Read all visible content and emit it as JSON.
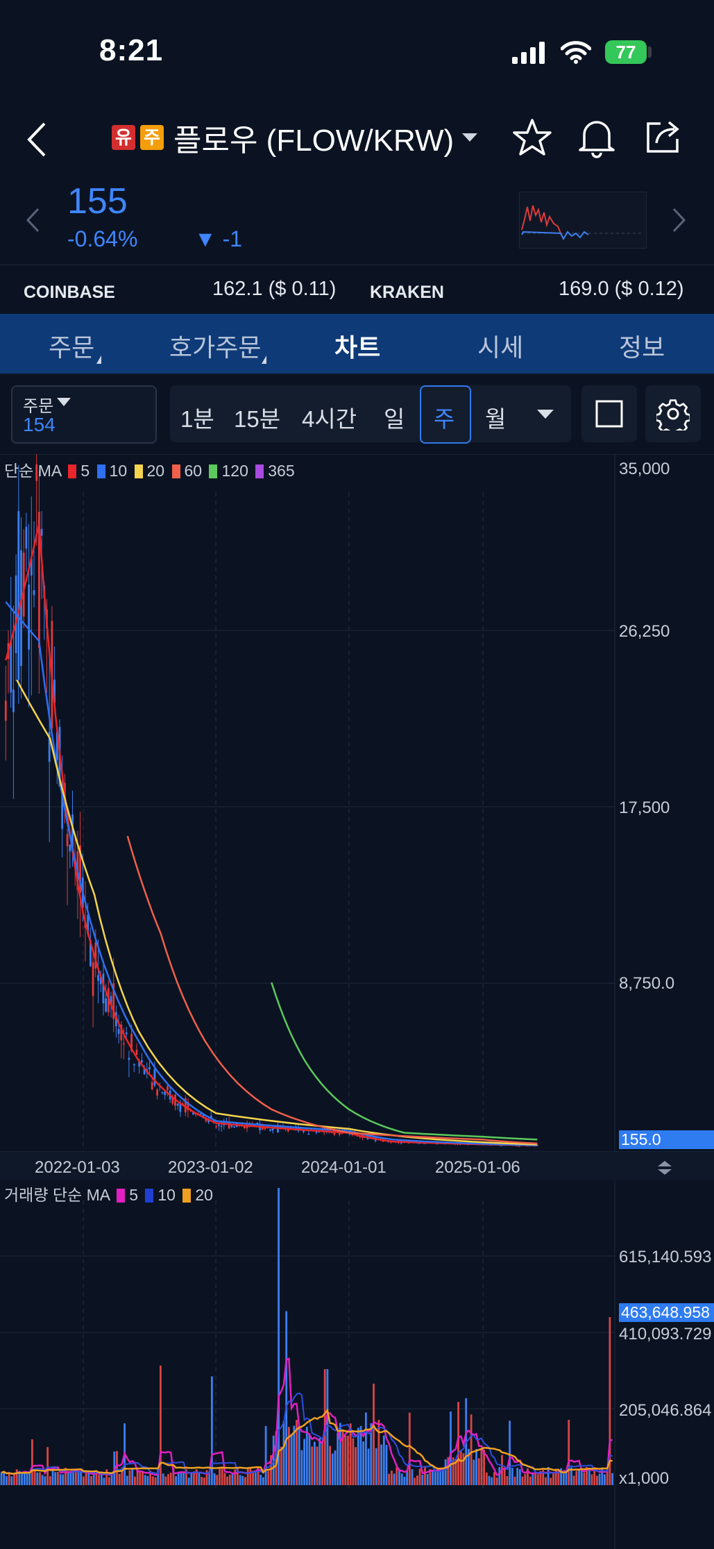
{
  "status": {
    "time": "8:21",
    "battery": "77"
  },
  "header": {
    "badges": [
      {
        "label": "유",
        "color": "#d32f2f"
      },
      {
        "label": "주",
        "color": "#f59e0b"
      }
    ],
    "title": "플로우 (FLOW/KRW)"
  },
  "price": {
    "value": "155",
    "change_pct": "-0.64%",
    "change": "▼ -1"
  },
  "exchanges": [
    {
      "name": "COINBASE",
      "value": "162.1 ($ 0.11)"
    },
    {
      "name": "KRAKEN",
      "value": "169.0 ($ 0.12)"
    }
  ],
  "tabs": [
    {
      "label": "주문",
      "dropdown": true,
      "active": false
    },
    {
      "label": "호가주문",
      "dropdown": true,
      "active": false
    },
    {
      "label": "차트",
      "dropdown": false,
      "active": true
    },
    {
      "label": "시세",
      "dropdown": false,
      "active": false
    },
    {
      "label": "정보",
      "dropdown": false,
      "active": false
    }
  ],
  "order": {
    "label": "주문",
    "value": "154"
  },
  "periods": [
    "1분",
    "15분",
    "4시간",
    "일",
    "주",
    "월"
  ],
  "selected_period": "주",
  "price_chart": {
    "legend_prefix": "단순 MA",
    "ma": [
      {
        "n": "5",
        "color": "#e8262b"
      },
      {
        "n": "10",
        "color": "#2f6ff0"
      },
      {
        "n": "20",
        "color": "#f5d54d"
      },
      {
        "n": "60",
        "color": "#f0604a"
      },
      {
        "n": "120",
        "color": "#5cc95c"
      },
      {
        "n": "365",
        "color": "#a94be0"
      }
    ],
    "y_ticks": [
      "35,000",
      "26,250",
      "17,500",
      "8,750.0"
    ],
    "current_tag": "155.0",
    "x_ticks": [
      "2022-01-03",
      "2023-01-02",
      "2024-01-01",
      "2025-01-06"
    ]
  },
  "volume_chart": {
    "legend_prefix": "거래량 단순 MA",
    "ma": [
      {
        "n": "5",
        "color": "#e020c0"
      },
      {
        "n": "10",
        "color": "#1f3fd0"
      },
      {
        "n": "20",
        "color": "#f0a020"
      }
    ],
    "y_ticks": [
      "615,140.593",
      "410,093.729",
      "205,046.864"
    ],
    "current_tag": "463,648.958",
    "unit": "x1,000"
  },
  "chart_data": [
    {
      "type": "line",
      "x_ticks": [
        "2022-01-03",
        "2023-01-02",
        "2024-01-01",
        "2025-01-06"
      ],
      "ylim": [
        0,
        35000
      ],
      "y_ticks": [
        35000,
        26250,
        17500,
        8750
      ],
      "series": [
        {
          "name": "5",
          "x": [
            "2021-06",
            "2021-09",
            "2022-01",
            "2022-06",
            "2023-01",
            "2024-01",
            "2024-05",
            "2025-06"
          ],
          "values": [
            25000,
            32000,
            12000,
            4500,
            1300,
            800,
            350,
            155
          ]
        },
        {
          "name": "10",
          "x": [
            "2021-06",
            "2021-09",
            "2022-01",
            "2022-06",
            "2023-01",
            "2024-01",
            "2024-05",
            "2025-06"
          ],
          "values": [
            28000,
            26000,
            13000,
            5500,
            1400,
            900,
            450,
            160
          ]
        },
        {
          "name": "20",
          "x": [
            "2021-07",
            "2021-10",
            "2022-02",
            "2022-06",
            "2023-01",
            "2024-01",
            "2024-06",
            "2025-06"
          ],
          "values": [
            24000,
            21000,
            13000,
            6000,
            1800,
            1000,
            600,
            200
          ]
        },
        {
          "name": "60",
          "x": [
            "2022-05",
            "2022-08",
            "2022-12",
            "2023-06",
            "2024-01",
            "2025-01",
            "2025-06"
          ],
          "values": [
            16000,
            11000,
            5500,
            2000,
            800,
            450,
            250
          ]
        },
        {
          "name": "120",
          "x": [
            "2023-06",
            "2023-09",
            "2024-01",
            "2024-06",
            "2025-01",
            "2025-06"
          ],
          "values": [
            8500,
            4500,
            2000,
            800,
            600,
            450
          ]
        }
      ]
    },
    {
      "type": "bar",
      "title": "거래량",
      "ylim": [
        0,
        820000
      ],
      "y_ticks": [
        615140.593,
        410093.729,
        205046.864
      ],
      "unit": "x1,000",
      "last_value": 463648.958
    }
  ]
}
